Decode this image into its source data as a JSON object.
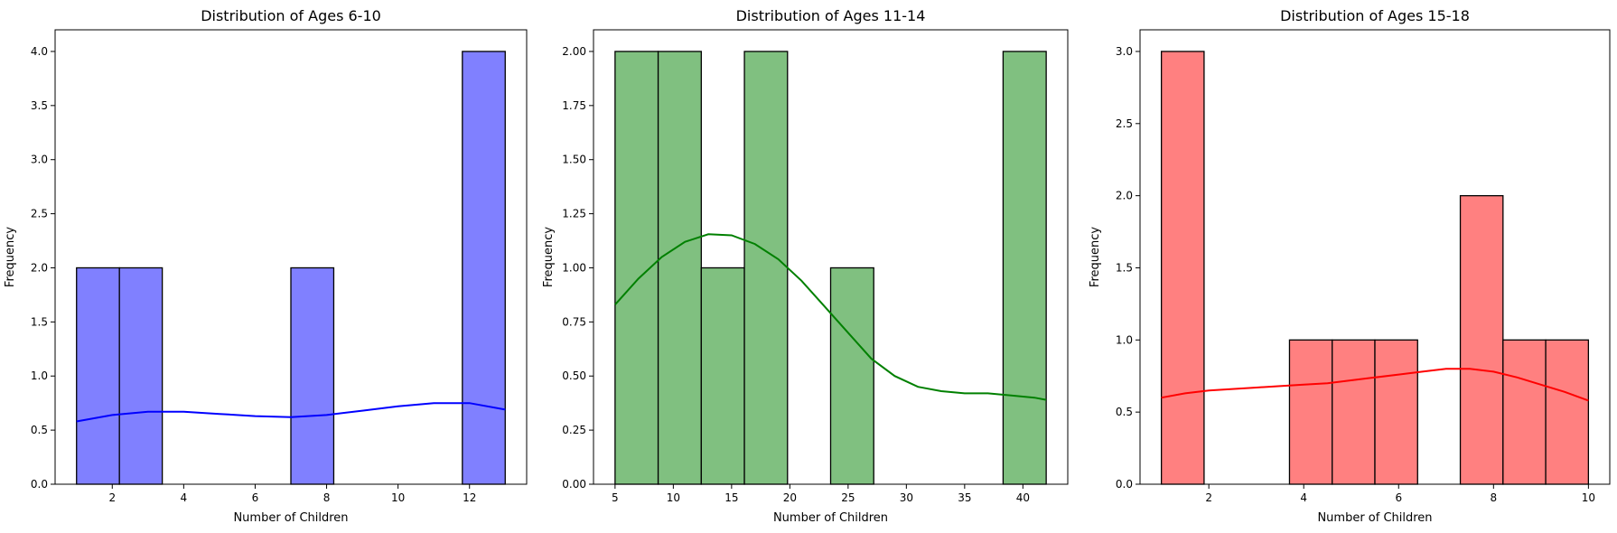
{
  "chart_data": [
    {
      "type": "bar",
      "title": "Distribution of Ages 6-10",
      "xlabel": "Number of Children",
      "ylabel": "Frequency",
      "color": "#0000ff",
      "fill": "#8080ff",
      "xlim": [
        0.4,
        13.6
      ],
      "ylim": [
        0,
        4.2
      ],
      "xticks": [
        2,
        4,
        6,
        8,
        10,
        12
      ],
      "yticks": [
        0.0,
        0.5,
        1.0,
        1.5,
        2.0,
        2.5,
        3.0,
        3.5,
        4.0
      ],
      "xtick_labels": [
        "2",
        "4",
        "6",
        "8",
        "10",
        "12"
      ],
      "ytick_labels": [
        "0.0",
        "0.5",
        "1.0",
        "1.5",
        "2.0",
        "2.5",
        "3.0",
        "3.5",
        "4.0"
      ],
      "bins": [
        {
          "x0": 1.0,
          "x1": 2.2,
          "value": 2
        },
        {
          "x0": 2.2,
          "x1": 3.4,
          "value": 2
        },
        {
          "x0": 7.0,
          "x1": 8.2,
          "value": 2
        },
        {
          "x0": 11.8,
          "x1": 13.0,
          "value": 4
        }
      ],
      "kde": {
        "x": [
          1,
          2,
          3,
          4,
          5,
          6,
          7,
          8,
          9,
          10,
          11,
          12,
          13
        ],
        "y": [
          0.58,
          0.64,
          0.67,
          0.67,
          0.65,
          0.63,
          0.62,
          0.64,
          0.68,
          0.72,
          0.75,
          0.75,
          0.69
        ]
      }
    },
    {
      "type": "bar",
      "title": "Distribution of Ages 11-14",
      "xlabel": "Number of Children",
      "ylabel": "Frequency",
      "color": "#008000",
      "fill": "#80c080",
      "xlim": [
        3.15,
        43.85
      ],
      "ylim": [
        0,
        2.1
      ],
      "xticks": [
        5,
        10,
        15,
        20,
        25,
        30,
        35,
        40
      ],
      "yticks": [
        0.0,
        0.25,
        0.5,
        0.75,
        1.0,
        1.25,
        1.5,
        1.75,
        2.0
      ],
      "xtick_labels": [
        "5",
        "10",
        "15",
        "20",
        "25",
        "30",
        "35",
        "40"
      ],
      "ytick_labels": [
        "0.00",
        "0.25",
        "0.50",
        "0.75",
        "1.00",
        "1.25",
        "1.50",
        "1.75",
        "2.00"
      ],
      "bins": [
        {
          "x0": 5.0,
          "x1": 8.7,
          "value": 2
        },
        {
          "x0": 8.7,
          "x1": 12.4,
          "value": 2
        },
        {
          "x0": 12.4,
          "x1": 16.1,
          "value": 1
        },
        {
          "x0": 16.1,
          "x1": 19.8,
          "value": 2
        },
        {
          "x0": 23.5,
          "x1": 27.2,
          "value": 1
        },
        {
          "x0": 38.3,
          "x1": 42.0,
          "value": 2
        }
      ],
      "kde": {
        "x": [
          5,
          7,
          9,
          11,
          13,
          15,
          17,
          19,
          21,
          23,
          25,
          27,
          29,
          31,
          33,
          35,
          37,
          39,
          41,
          42
        ],
        "y": [
          0.83,
          0.95,
          1.05,
          1.12,
          1.155,
          1.15,
          1.11,
          1.04,
          0.94,
          0.82,
          0.7,
          0.58,
          0.5,
          0.45,
          0.43,
          0.42,
          0.42,
          0.41,
          0.4,
          0.39
        ]
      }
    },
    {
      "type": "bar",
      "title": "Distribution of Ages 15-18",
      "xlabel": "Number of Children",
      "ylabel": "Frequency",
      "color": "#ff0000",
      "fill": "#ff8080",
      "xlim": [
        0.55,
        10.45
      ],
      "ylim": [
        0,
        3.15
      ],
      "xticks": [
        2,
        4,
        6,
        8,
        10
      ],
      "yticks": [
        0.0,
        0.5,
        1.0,
        1.5,
        2.0,
        2.5,
        3.0
      ],
      "xtick_labels": [
        "2",
        "4",
        "6",
        "8",
        "10"
      ],
      "ytick_labels": [
        "0.0",
        "0.5",
        "1.0",
        "1.5",
        "2.0",
        "2.5",
        "3.0"
      ],
      "bins": [
        {
          "x0": 1.0,
          "x1": 1.9,
          "value": 3
        },
        {
          "x0": 3.7,
          "x1": 4.6,
          "value": 1
        },
        {
          "x0": 4.6,
          "x1": 5.5,
          "value": 1
        },
        {
          "x0": 5.5,
          "x1": 6.4,
          "value": 1
        },
        {
          "x0": 7.3,
          "x1": 8.2,
          "value": 2
        },
        {
          "x0": 8.2,
          "x1": 9.1,
          "value": 1
        },
        {
          "x0": 9.1,
          "x1": 10.0,
          "value": 1
        }
      ],
      "kde": {
        "x": [
          1,
          1.5,
          2,
          2.5,
          3,
          3.5,
          4,
          4.5,
          5,
          5.5,
          6,
          6.5,
          7,
          7.5,
          8,
          8.5,
          9,
          9.5,
          10
        ],
        "y": [
          0.6,
          0.63,
          0.65,
          0.66,
          0.67,
          0.68,
          0.69,
          0.7,
          0.72,
          0.74,
          0.76,
          0.78,
          0.8,
          0.8,
          0.78,
          0.74,
          0.69,
          0.64,
          0.58
        ]
      }
    }
  ]
}
